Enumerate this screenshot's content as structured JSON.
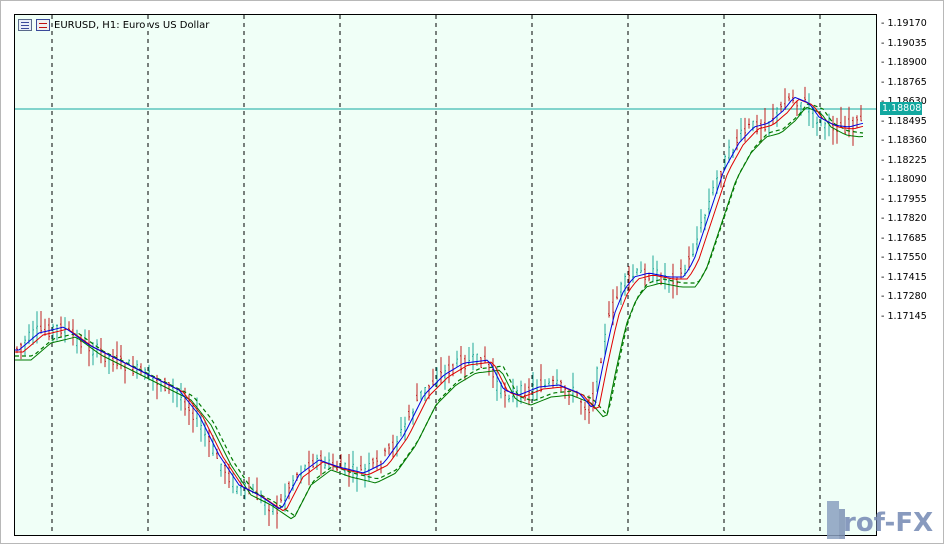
{
  "header": {
    "title": "EURUSD, H1:  Euro vs US Dollar",
    "icon_1": "chart-window-icon",
    "icon_2": "chart-type-icon"
  },
  "price_axis": {
    "ticks": [
      "1.19170",
      "1.19035",
      "1.18900",
      "1.18765",
      "1.18630",
      "1.18495",
      "1.18360",
      "1.18225",
      "1.18090",
      "1.17955",
      "1.17820",
      "1.17685",
      "1.17550",
      "1.17415",
      "1.17280",
      "1.17145"
    ],
    "current_price": "1.18808"
  },
  "colors": {
    "background": "#f0fff7",
    "bull_bar": "#20a898",
    "bear_bar": "#c02020",
    "ma_red": "#e00000",
    "ma_blue": "#0000e0",
    "ma_green": "#007a00",
    "price_line": "#12a8a0"
  },
  "logo": {
    "text": "Prof-FX"
  }
}
